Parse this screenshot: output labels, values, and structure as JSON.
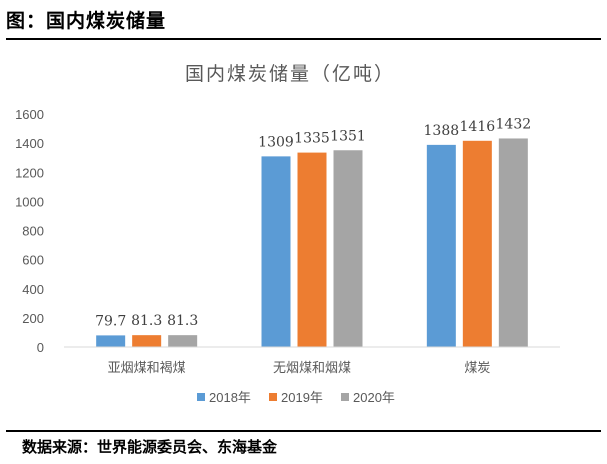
{
  "figure_title": "图：国内煤炭储量",
  "source": "数据来源：世界能源委员会、东海基金",
  "colors": {
    "2018年": "#5B9BD5",
    "2019年": "#ED7D31",
    "2020年": "#A5A5A5"
  },
  "chart_data": {
    "type": "bar",
    "title": "国内煤炭储量（亿吨）",
    "categories": [
      "亚烟煤和褐煤",
      "无烟煤和烟煤",
      "煤炭"
    ],
    "series": [
      {
        "name": "2018年",
        "values": [
          79.7,
          1309,
          1388
        ],
        "labels": [
          "79.7",
          "1309",
          "1388"
        ]
      },
      {
        "name": "2019年",
        "values": [
          81.3,
          1335,
          1416
        ],
        "labels": [
          "81.3",
          "1335",
          "1416"
        ]
      },
      {
        "name": "2020年",
        "values": [
          81.3,
          1351,
          1432
        ],
        "labels": [
          "81.3",
          "1351",
          "1432"
        ]
      }
    ],
    "yticks": [
      "0",
      "200",
      "400",
      "600",
      "800",
      "1000",
      "1200",
      "1400",
      "1600"
    ],
    "ylim": [
      0,
      1600
    ],
    "grid": false,
    "legend_position": "bottom"
  }
}
